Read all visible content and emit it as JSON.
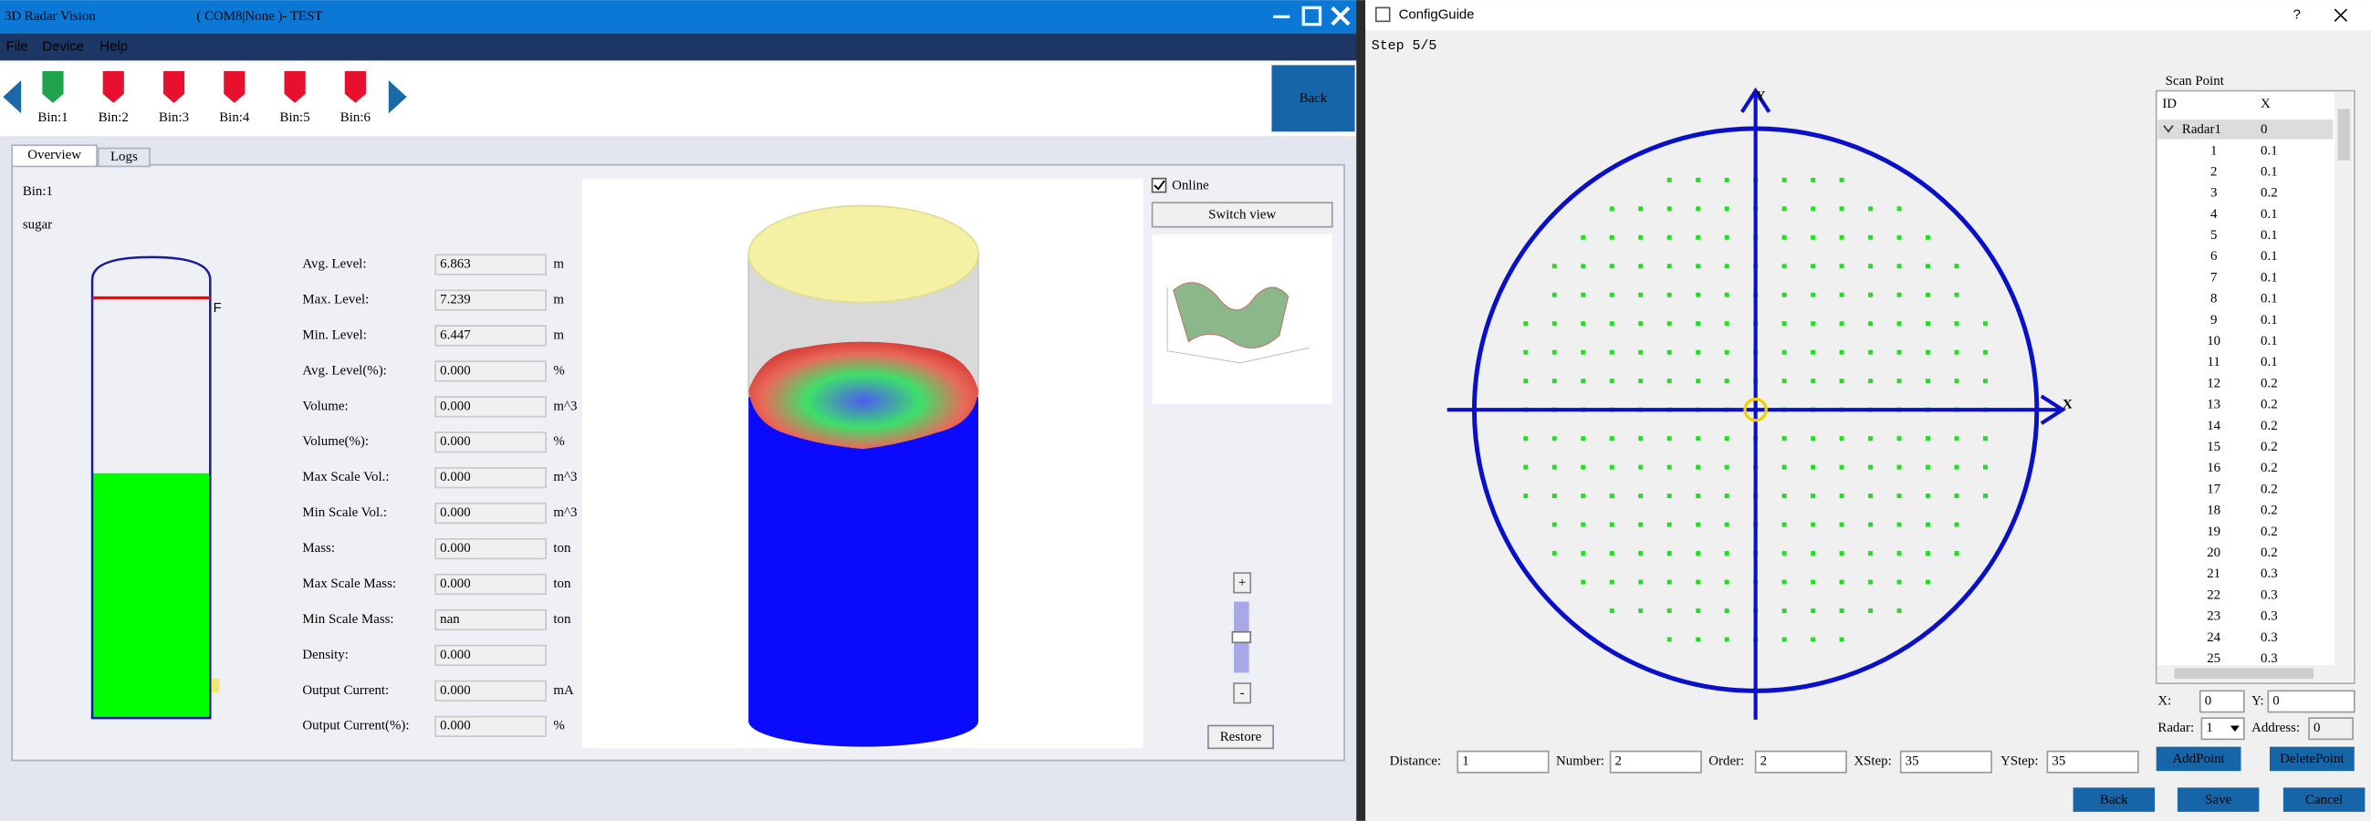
{
  "main_window": {
    "title": "3D Radar Vision",
    "subtitle": "( COM8|None )- TEST",
    "menu": [
      "File",
      "Device",
      "Help"
    ],
    "bins": [
      "Bin:1",
      "Bin:2",
      "Bin:3",
      "Bin:4",
      "Bin:5",
      "Bin:6"
    ],
    "back": "Back",
    "tabs": [
      "Overview",
      "Logs"
    ],
    "bin": "Bin:1",
    "material": "sugar",
    "fill_marker": "F",
    "fields": [
      {
        "label": "Avg. Level:",
        "value": "6.863",
        "unit": "m"
      },
      {
        "label": "Max. Level:",
        "value": "7.239",
        "unit": "m"
      },
      {
        "label": "Min. Level:",
        "value": "6.447",
        "unit": "m"
      },
      {
        "label": "Avg. Level(%):",
        "value": "0.000",
        "unit": "%"
      },
      {
        "label": "Volume:",
        "value": "0.000",
        "unit": "m^3"
      },
      {
        "label": "Volume(%):",
        "value": "0.000",
        "unit": "%"
      },
      {
        "label": "Max Scale Vol.:",
        "value": "0.000",
        "unit": "m^3"
      },
      {
        "label": "Min Scale Vol.:",
        "value": "0.000",
        "unit": "m^3"
      },
      {
        "label": "Mass:",
        "value": "0.000",
        "unit": "ton"
      },
      {
        "label": "Max Scale Mass:",
        "value": "0.000",
        "unit": "ton"
      },
      {
        "label": "Min Scale Mass:",
        "value": "nan",
        "unit": "ton"
      },
      {
        "label": "Density:",
        "value": "0.000"
      },
      {
        "label": "Output Current:",
        "value": "0.000",
        "unit": "mA"
      },
      {
        "label": "Output Current(%):",
        "value": "0.000",
        "unit": "%"
      }
    ],
    "online": "Online",
    "switch_view": "Switch view",
    "zoom_in": "+",
    "zoom_out": "-",
    "restore": "Restore"
  },
  "config_guide": {
    "title": "ConfigGuide",
    "help": "?",
    "step": "Step 5/5",
    "y_axis": "Y",
    "x_axis": "X",
    "scan_point": {
      "title": "Scan Point",
      "columns": [
        "ID",
        "X"
      ],
      "rows": [
        [
          "Radar1",
          "0"
        ],
        [
          "1",
          "0.1"
        ],
        [
          "2",
          "0.1"
        ],
        [
          "3",
          "0.2"
        ],
        [
          "4",
          "0.1"
        ],
        [
          "5",
          "0.1"
        ],
        [
          "6",
          "0.1"
        ],
        [
          "7",
          "0.1"
        ],
        [
          "8",
          "0.1"
        ],
        [
          "9",
          "0.1"
        ],
        [
          "10",
          "0.1"
        ],
        [
          "11",
          "0.1"
        ],
        [
          "12",
          "0.2"
        ],
        [
          "13",
          "0.2"
        ],
        [
          "14",
          "0.2"
        ],
        [
          "15",
          "0.2"
        ],
        [
          "16",
          "0.2"
        ],
        [
          "17",
          "0.2"
        ],
        [
          "18",
          "0.2"
        ],
        [
          "19",
          "0.2"
        ],
        [
          "20",
          "0.2"
        ],
        [
          "21",
          "0.3"
        ],
        [
          "22",
          "0.3"
        ],
        [
          "23",
          "0.3"
        ],
        [
          "24",
          "0.3"
        ],
        [
          "25",
          "0.3"
        ]
      ]
    },
    "point_fields": [
      {
        "label": "X:",
        "value": "0"
      },
      {
        "label": "Y:",
        "value": "0"
      },
      {
        "label": "Radar:",
        "value": "1"
      },
      {
        "label": "Address:",
        "value": "0"
      }
    ],
    "point_buttons": [
      "AddPoint",
      "DeletePoint"
    ],
    "params": [
      {
        "label": "Distance:",
        "value": "1"
      },
      {
        "label": "Number:",
        "value": "2"
      },
      {
        "label": "Order:",
        "value": "2"
      },
      {
        "label": "XStep:",
        "value": "35"
      },
      {
        "label": "YStep:",
        "value": "35"
      }
    ],
    "buttons": [
      "Back",
      "Save",
      "Cancel"
    ]
  }
}
